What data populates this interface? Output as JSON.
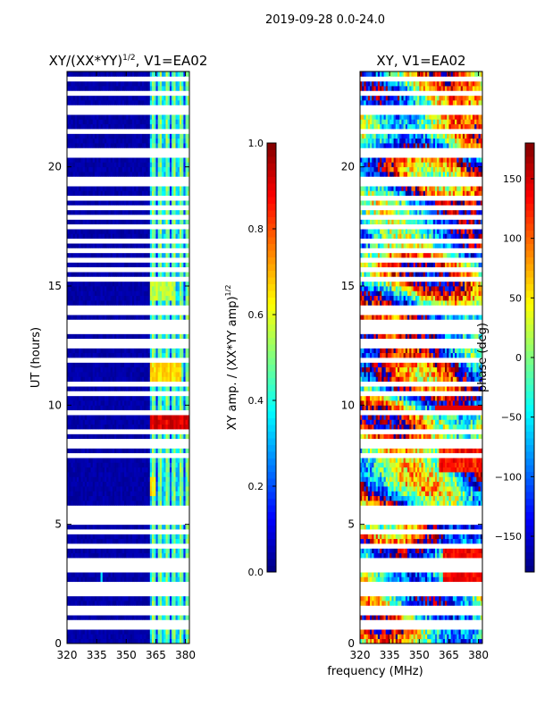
{
  "figure_title": "2019-09-28 0.0-24.0",
  "shared_xlabel": "frequency (MHz)",
  "chart_data": [
    {
      "type": "heatmap",
      "title_main": "XY/(XX*YY)",
      "title_sup": "1/2",
      "title_tail": ", V1=EA02",
      "xlabel": "",
      "ylabel": "UT (hours)",
      "xlim": [
        320,
        382
      ],
      "ylim": [
        0,
        24
      ],
      "x_ticks": [
        320,
        335,
        350,
        365,
        380
      ],
      "y_ticks": [
        0,
        5,
        10,
        15,
        20
      ],
      "colormap": "jet",
      "colorbar": {
        "label_main": "XY amp. / (XX*YY amp)",
        "label_sup": "1/2",
        "range": [
          0.0,
          1.0
        ],
        "ticks": [
          0.0,
          0.2,
          0.4,
          0.6,
          0.8,
          1.0
        ],
        "tick_labels": [
          "0.0",
          "0.2",
          "0.4",
          "0.6",
          "0.8",
          "1.0"
        ]
      },
      "active_band_mhz": [
        362,
        382
      ],
      "bright_bursts": [
        {
          "t_hours": 9.4,
          "freq_mhz": [
            362,
            382
          ],
          "value": 0.95
        },
        {
          "t_hours": 11.4,
          "freq_mhz": [
            362,
            378
          ],
          "value": 0.7
        },
        {
          "t_hours": 14.8,
          "freq_mhz": [
            362,
            375
          ],
          "value": 0.6
        },
        {
          "t_hours": 6.6,
          "freq_mhz": [
            362,
            365
          ],
          "value": 0.7
        }
      ]
    },
    {
      "type": "heatmap",
      "title_main": "XY, V1=EA02",
      "title_sup": "",
      "title_tail": "",
      "xlabel": "frequency (MHz)",
      "ylabel": "",
      "xlim": [
        320,
        382
      ],
      "ylim": [
        0,
        24
      ],
      "x_ticks": [
        320,
        335,
        350,
        365,
        380
      ],
      "y_ticks": [
        0,
        5,
        10,
        15,
        20
      ],
      "colormap": "jet",
      "colorbar": {
        "label_main": "phase (deg)",
        "label_sup": "",
        "range": [
          -180,
          180
        ],
        "ticks": [
          -150,
          -100,
          -50,
          0,
          50,
          100,
          150
        ],
        "tick_labels": [
          "−150",
          "−100",
          "−50",
          "0",
          "50",
          "100",
          "150"
        ]
      }
    }
  ],
  "gap_rows_hours": [
    0.75,
    0.85,
    1.3,
    1.55,
    2.05,
    2.3,
    2.55,
    3.05,
    3.3,
    3.55,
    4.05,
    4.4,
    4.75,
    5.05,
    5.25,
    5.55,
    5.75,
    6.0,
    6.8,
    7.0,
    7.9,
    8.25,
    8.55,
    8.9,
    9.7,
    10.2,
    10.45,
    10.95,
    11.9,
    12.2,
    12.5,
    12.75,
    13.05,
    13.3,
    13.55,
    13.85,
    14.1,
    15.2,
    15.35,
    15.6,
    15.75,
    16.15,
    16.55,
    16.95,
    17.45,
    17.95,
    18.35,
    18.65,
    19.25,
    19.4,
    19.55,
    20.55,
    20.75,
    21.5,
    22.25,
    22.45,
    22.6,
    22.8,
    23.1,
    23.4,
    23.65
  ]
}
